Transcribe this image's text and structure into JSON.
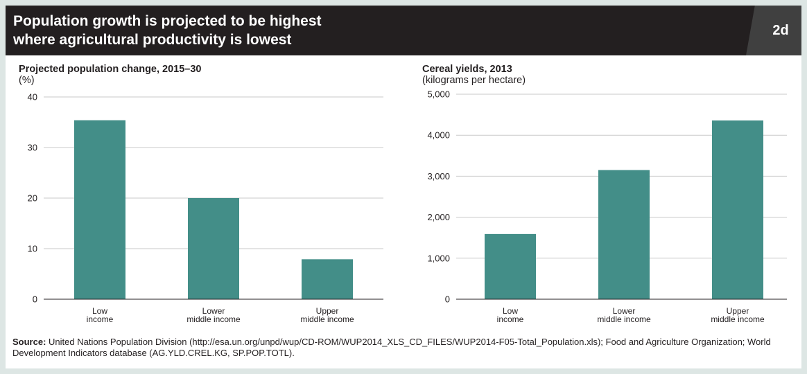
{
  "header": {
    "title_line1": "Population growth is projected to be highest",
    "title_line2": "where agricultural productivity is lowest",
    "badge": "2d"
  },
  "colors": {
    "bar": "#438e88",
    "banner": "#231f20",
    "grid": "#c8c8c8"
  },
  "chart_data": [
    {
      "type": "bar",
      "title": "Projected population change, 2015–30",
      "subtitle": "(%)",
      "xlabel": "",
      "ylabel": "",
      "categories": [
        [
          "Low",
          "income"
        ],
        [
          "Lower",
          "middle income"
        ],
        [
          "Upper",
          "middle income"
        ]
      ],
      "values": [
        35.4,
        20,
        7.9
      ],
      "ylim": [
        0,
        40
      ],
      "yticks": [
        0,
        10,
        20,
        30,
        40
      ],
      "ytick_labels": [
        "0",
        "10",
        "20",
        "30",
        "40"
      ],
      "grid": true,
      "legend": "none"
    },
    {
      "type": "bar",
      "title": "Cereal yields, 2013",
      "subtitle": "(kilograms per hectare)",
      "xlabel": "",
      "ylabel": "",
      "categories": [
        [
          "Low",
          "income"
        ],
        [
          "Lower",
          "middle income"
        ],
        [
          "Upper",
          "middle income"
        ]
      ],
      "values": [
        1590,
        3150,
        4360
      ],
      "ylim": [
        0,
        5000
      ],
      "yticks": [
        0,
        1000,
        2000,
        3000,
        4000,
        5000
      ],
      "ytick_labels": [
        "0",
        "1,000",
        "2,000",
        "3,000",
        "4,000",
        "5,000"
      ],
      "grid": true,
      "legend": "none"
    }
  ],
  "source": {
    "label": "Source:",
    "text": " United Nations Population Division (http://esa.un.org/unpd/wup/CD-ROM/WUP2014_XLS_CD_FILES/WUP2014-F05-Total_Population.xls); Food and Agriculture Organization; World Development Indicators database (AG.YLD.CREL.KG, SP.POP.TOTL)."
  }
}
